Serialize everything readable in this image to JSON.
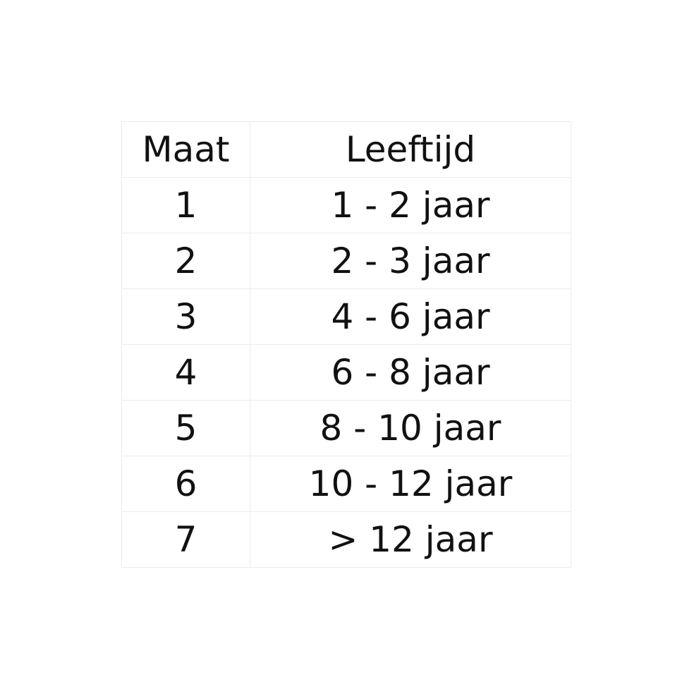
{
  "table": {
    "headers": [
      "Maat",
      "Leeftijd"
    ],
    "rows": [
      [
        "1",
        "1 - 2 jaar"
      ],
      [
        "2",
        "2 - 3 jaar"
      ],
      [
        "3",
        "4 - 6 jaar"
      ],
      [
        "4",
        "6 - 8 jaar"
      ],
      [
        "5",
        "8 - 10 jaar"
      ],
      [
        "6",
        "10 - 12 jaar"
      ],
      [
        "7",
        "> 12 jaar"
      ]
    ]
  }
}
